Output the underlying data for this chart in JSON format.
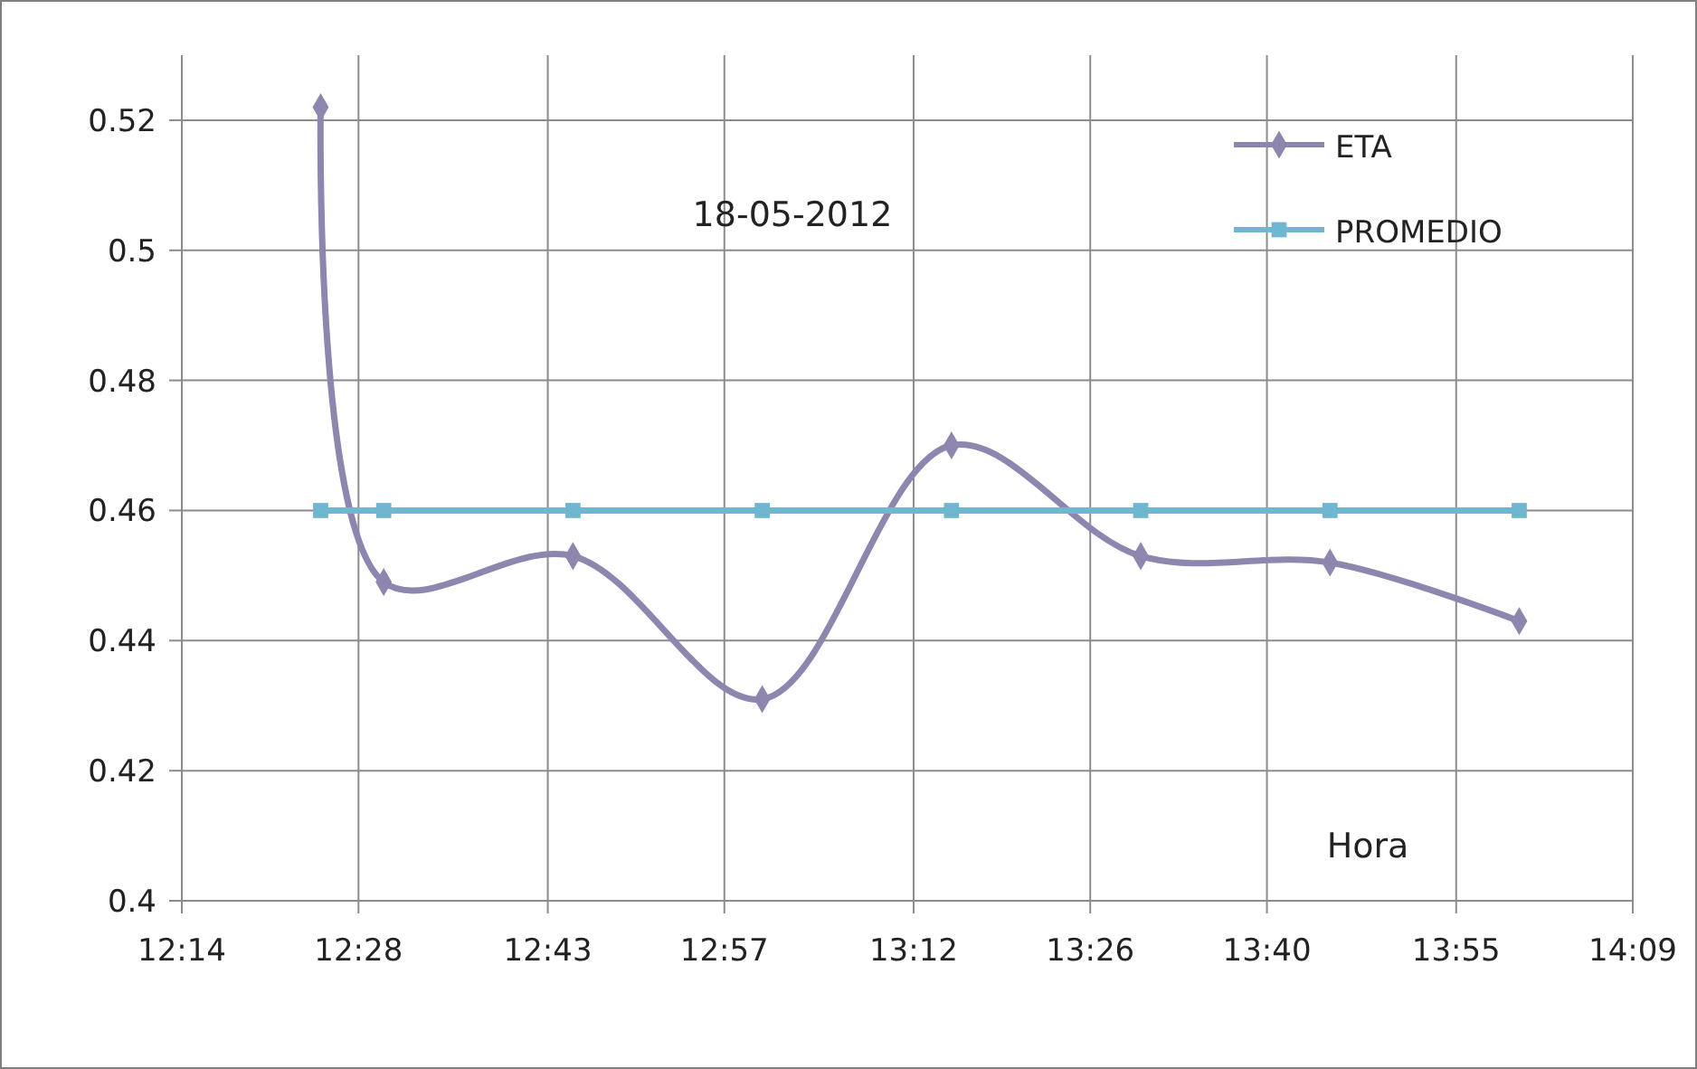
{
  "chart_data": {
    "type": "line",
    "xlabel": "Hora",
    "annotations": [
      "18-05-2012"
    ],
    "x": [
      12.4167,
      12.5,
      12.75,
      13.0,
      13.25,
      13.5,
      13.75,
      14.0
    ],
    "series": [
      {
        "name": "ETA",
        "color": "#8e86ae",
        "marker": "diamond",
        "values": [
          0.522,
          0.449,
          0.453,
          0.431,
          0.47,
          0.453,
          0.452,
          0.443
        ]
      },
      {
        "name": "PROMEDIO",
        "color": "#6fb7d0",
        "marker": "square",
        "values": [
          0.46,
          0.46,
          0.46,
          0.46,
          0.46,
          0.46,
          0.46,
          0.46
        ]
      }
    ],
    "xlim": [
      12.2333,
      14.15
    ],
    "xticks": [
      {
        "value": 12.2333,
        "label": "12:14"
      },
      {
        "value": 12.4667,
        "label": "12:28"
      },
      {
        "value": 12.7167,
        "label": "12:43"
      },
      {
        "value": 12.95,
        "label": "12:57"
      },
      {
        "value": 13.2,
        "label": "13:12"
      },
      {
        "value": 13.4333,
        "label": "13:26"
      },
      {
        "value": 13.6667,
        "label": "13:40"
      },
      {
        "value": 13.9167,
        "label": "13:55"
      },
      {
        "value": 14.15,
        "label": "14:09"
      }
    ],
    "ylim": [
      0.4,
      0.53
    ],
    "yticks": [
      0.4,
      0.42,
      0.44,
      0.46,
      0.48,
      0.5,
      0.52
    ],
    "grid": true,
    "legend": "top right",
    "line_style": "solid"
  }
}
